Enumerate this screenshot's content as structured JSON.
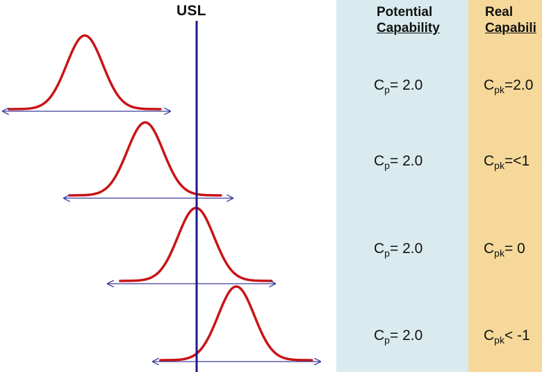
{
  "diagram": {
    "limit_label": "USL",
    "colors": {
      "curve": "#c81418",
      "limit_line": "#1a1a80",
      "arrow": "#3a3a9a",
      "potential_panel": "#d9ebee",
      "real_panel": "#f6d99a"
    }
  },
  "columns": {
    "potential": {
      "line1": "Potential",
      "line2": "Capability"
    },
    "real": {
      "line1": "Real",
      "line2": "Capabili"
    }
  },
  "rows": [
    {
      "cp": {
        "symbol": "C",
        "sub": "p",
        "rest": "= 2.0"
      },
      "cpk": {
        "symbol": "C",
        "sub": "pk",
        "rest": "=2.0"
      }
    },
    {
      "cp": {
        "symbol": "C",
        "sub": "p",
        "rest": "= 2.0"
      },
      "cpk": {
        "symbol": "C",
        "sub": "pk",
        "rest": "=<1"
      }
    },
    {
      "cp": {
        "symbol": "C",
        "sub": "p",
        "rest": "= 2.0"
      },
      "cpk": {
        "symbol": "C",
        "sub": "pk",
        "rest": "= 0"
      }
    },
    {
      "cp": {
        "symbol": "C",
        "sub": "p",
        "rest": "= 2.0"
      },
      "cpk": {
        "symbol": "C",
        "sub": "pk",
        "rest": "< -1"
      }
    }
  ]
}
